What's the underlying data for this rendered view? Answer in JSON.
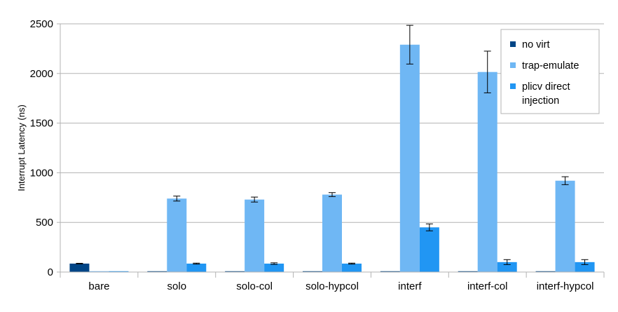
{
  "chart_data": {
    "type": "bar",
    "title": "",
    "xlabel": "",
    "ylabel": "Interrupt Latency (ns)",
    "ylim": [
      0,
      2500
    ],
    "yticks": [
      0,
      500,
      1000,
      1500,
      2000,
      2500
    ],
    "grid": true,
    "legend_position": "top-right",
    "categories": [
      "bare",
      "solo",
      "solo-col",
      "solo-hypcol",
      "interf",
      "interf-col",
      "interf-hypcol"
    ],
    "series": [
      {
        "name": "no virt",
        "color": "#004586",
        "values": [
          85,
          0,
          0,
          0,
          0,
          0,
          0
        ],
        "errors": [
          3,
          0,
          0,
          0,
          0,
          0,
          0
        ]
      },
      {
        "name": "trap-emulate",
        "color": "#6fb7f4",
        "values": [
          0,
          740,
          730,
          780,
          2290,
          2015,
          920
        ],
        "errors": [
          0,
          25,
          25,
          20,
          195,
          210,
          40
        ]
      },
      {
        "name": "plicv direct injection",
        "legend_lines": [
          "plicv direct",
          "injection"
        ],
        "color": "#2196f3",
        "values": [
          0,
          85,
          85,
          85,
          450,
          100,
          100
        ],
        "errors": [
          0,
          5,
          8,
          5,
          35,
          25,
          25
        ]
      }
    ]
  }
}
